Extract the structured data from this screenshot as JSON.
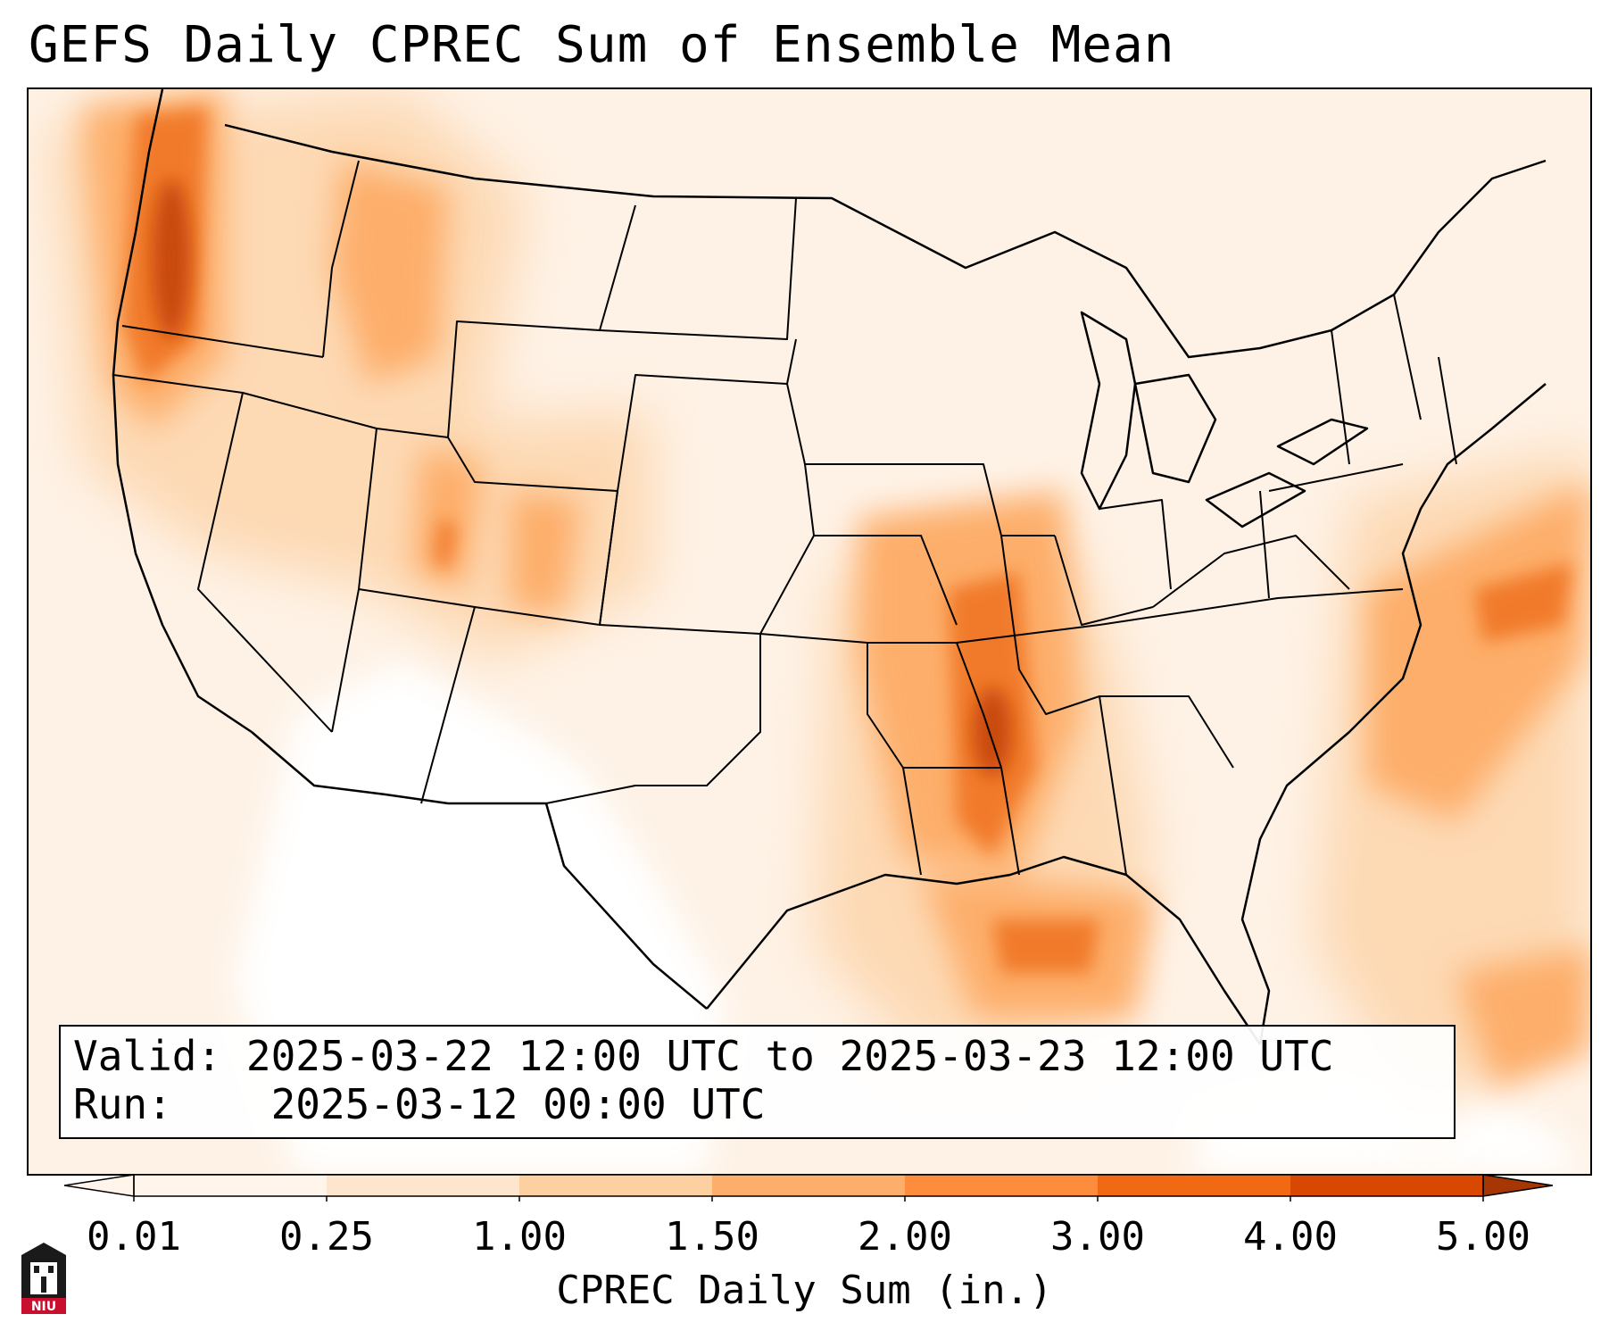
{
  "title": "GEFS Daily CPREC Sum of Ensemble Mean",
  "info": {
    "valid_label": "Valid:",
    "valid_value": "2025-03-22 12:00 UTC to 2025-03-23 12:00 UTC",
    "run_label": "Run:",
    "run_value": "2025-03-12 00:00 UTC"
  },
  "colorbar": {
    "label": "CPREC Daily Sum (in.)",
    "ticks": [
      "0.01",
      "0.25",
      "1.00",
      "1.50",
      "2.00",
      "3.00",
      "4.00",
      "5.00"
    ],
    "colors": [
      "#fff5eb",
      "#fee6ce",
      "#fdd0a2",
      "#fdae6b",
      "#fd8d3c",
      "#f16913",
      "#d94801",
      "#a63603"
    ],
    "extend": "both"
  },
  "logo": {
    "text": "NIU",
    "icon": "university-tower-icon"
  },
  "map": {
    "region": "Contiguous United States",
    "precip_features": [
      {
        "name": "Pacific Northwest coast",
        "level": 6
      },
      {
        "name": "Idaho / western Montana",
        "level": 4
      },
      {
        "name": "Utah / Wasatch",
        "level": 4
      },
      {
        "name": "Colorado Rockies",
        "level": 4
      },
      {
        "name": "Mid-Mississippi Valley",
        "level": 5
      },
      {
        "name": "Central Gulf Coast",
        "level": 4
      },
      {
        "name": "Atlantic offshore band",
        "level": 4
      }
    ]
  }
}
